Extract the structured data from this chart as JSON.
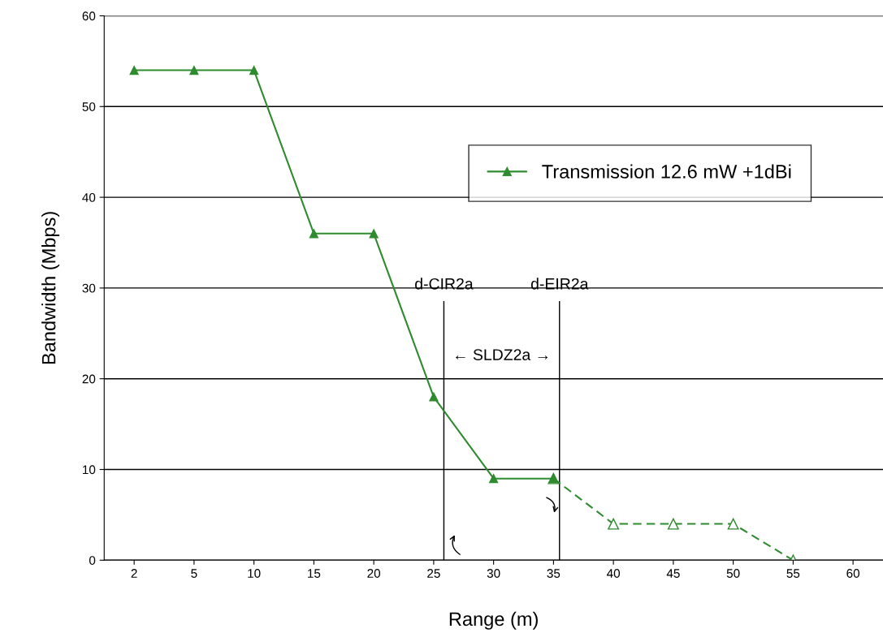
{
  "chart_data": {
    "type": "line",
    "xlabel": "Range (m)",
    "ylabel": "Bandwidth (Mbps)",
    "categories": [
      "2",
      "5",
      "10",
      "15",
      "20",
      "25",
      "30",
      "35",
      "40",
      "45",
      "50",
      "55",
      "60"
    ],
    "series": [
      {
        "name": "Transmission 12.6 mW +1dBi",
        "color": "#2e8b2e",
        "line_style": "solid",
        "values": [
          54,
          54,
          54,
          36,
          36,
          18,
          9,
          9,
          null,
          null,
          null,
          null,
          null
        ]
      },
      {
        "color": "#2e8b2e",
        "line_style": "dashed",
        "values": [
          null,
          null,
          null,
          null,
          null,
          null,
          null,
          9,
          4,
          4,
          4,
          0,
          null
        ]
      }
    ],
    "ylim": [
      0,
      60
    ],
    "yticks": [
      0,
      10,
      20,
      30,
      40,
      50,
      60
    ],
    "grid": "y",
    "marker": "triangle",
    "legend": "top right",
    "annotations": [
      "d-CIR2a",
      "d-EIR2a",
      "← SLDZ2a →"
    ]
  }
}
